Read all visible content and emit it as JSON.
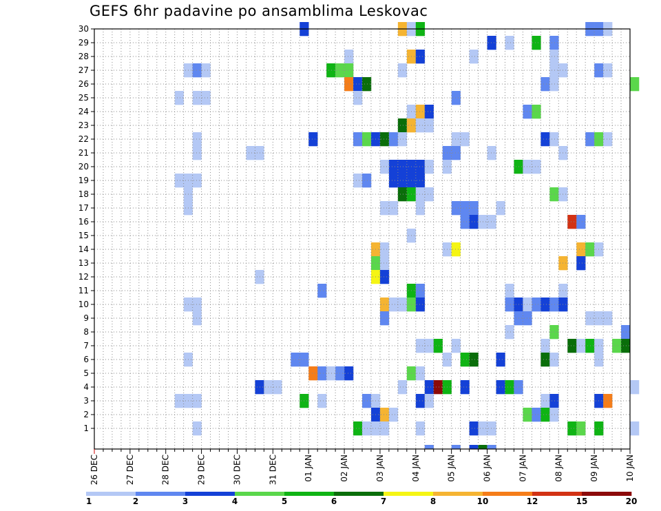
{
  "chart_data": {
    "type": "heatmap",
    "title": "GEFS 6hr padavine po ansamblima Leskovac",
    "xlabel": "",
    "ylabel": "",
    "x_ticks": [
      "26 DEC",
      "27 DEC",
      "28 DEC",
      "29 DEC",
      "30 DEC",
      "31 DEC",
      "01 JAN",
      "02 JAN",
      "03 JAN",
      "04 JAN",
      "05 JAN",
      "06 JAN",
      "07 JAN",
      "08 JAN",
      "09 JAN",
      "10 JAN"
    ],
    "xlim_days": [
      0,
      15
    ],
    "slots_per_day": 4,
    "y_ticks": [
      1,
      2,
      3,
      4,
      5,
      6,
      7,
      8,
      9,
      10,
      11,
      12,
      13,
      14,
      15,
      16,
      17,
      18,
      19,
      20,
      21,
      22,
      23,
      24,
      25,
      26,
      27,
      28,
      29,
      30
    ],
    "ylim": [
      0,
      30
    ],
    "legend": {
      "labels": [
        "1",
        "2",
        "3",
        "4",
        "5",
        "6",
        "7",
        "8",
        "10",
        "12",
        "15",
        "20"
      ],
      "colors": [
        "#b4c8f5",
        "#5f87f0",
        "#1441d7",
        "#5ad74b",
        "#0fb414",
        "#0a6e0a",
        "#f5f514",
        "#f5b432",
        "#f57d19",
        "#d23214",
        "#8c0a0a"
      ]
    },
    "class_colors": [
      "#b4c8f5",
      "#5f87f0",
      "#1441d7",
      "#5ad74b",
      "#0fb414",
      "#0a6e0a",
      "#f5f514",
      "#f5b432",
      "#f57d19",
      "#d23214",
      "#8c0a0a"
    ],
    "cells": [
      [
        30,
        23,
        3
      ],
      [
        30,
        34,
        8
      ],
      [
        30,
        35,
        1
      ],
      [
        30,
        36,
        5
      ],
      [
        30,
        55,
        2
      ],
      [
        30,
        56,
        2
      ],
      [
        30,
        57,
        1
      ],
      [
        29,
        44,
        3
      ],
      [
        29,
        46,
        1
      ],
      [
        29,
        49,
        5
      ],
      [
        29,
        51,
        2
      ],
      [
        28,
        28,
        1
      ],
      [
        28,
        35,
        8
      ],
      [
        28,
        36,
        3
      ],
      [
        28,
        42,
        1
      ],
      [
        28,
        51,
        1
      ],
      [
        27,
        10,
        1
      ],
      [
        27,
        11,
        2
      ],
      [
        27,
        12,
        1
      ],
      [
        27,
        26,
        5
      ],
      [
        27,
        27,
        4
      ],
      [
        27,
        28,
        4
      ],
      [
        27,
        34,
        1
      ],
      [
        27,
        51,
        1
      ],
      [
        27,
        52,
        1
      ],
      [
        27,
        56,
        2
      ],
      [
        27,
        57,
        1
      ],
      [
        26,
        28,
        9
      ],
      [
        26,
        29,
        3
      ],
      [
        26,
        30,
        6
      ],
      [
        26,
        50,
        2
      ],
      [
        26,
        51,
        1
      ],
      [
        26,
        60,
        4
      ],
      [
        25,
        9,
        1
      ],
      [
        25,
        11,
        1
      ],
      [
        25,
        12,
        1
      ],
      [
        25,
        29,
        1
      ],
      [
        25,
        40,
        2
      ],
      [
        24,
        35,
        1
      ],
      [
        24,
        36,
        8
      ],
      [
        24,
        37,
        3
      ],
      [
        24,
        48,
        2
      ],
      [
        24,
        49,
        4
      ],
      [
        23,
        34,
        6
      ],
      [
        23,
        35,
        8
      ],
      [
        23,
        36,
        1
      ],
      [
        23,
        37,
        1
      ],
      [
        22,
        11,
        1
      ],
      [
        22,
        24,
        3
      ],
      [
        22,
        29,
        2
      ],
      [
        22,
        30,
        4
      ],
      [
        22,
        31,
        3
      ],
      [
        22,
        32,
        6
      ],
      [
        22,
        33,
        2
      ],
      [
        22,
        34,
        1
      ],
      [
        22,
        40,
        1
      ],
      [
        22,
        41,
        1
      ],
      [
        22,
        50,
        3
      ],
      [
        22,
        51,
        1
      ],
      [
        22,
        55,
        2
      ],
      [
        22,
        56,
        4
      ],
      [
        22,
        57,
        1
      ],
      [
        21,
        11,
        1
      ],
      [
        21,
        17,
        1
      ],
      [
        21,
        18,
        1
      ],
      [
        21,
        39,
        2
      ],
      [
        21,
        40,
        2
      ],
      [
        21,
        44,
        1
      ],
      [
        21,
        52,
        1
      ],
      [
        20,
        32,
        1
      ],
      [
        20,
        33,
        3
      ],
      [
        20,
        34,
        3
      ],
      [
        20,
        35,
        3
      ],
      [
        20,
        36,
        3
      ],
      [
        20,
        37,
        1
      ],
      [
        20,
        39,
        1
      ],
      [
        20,
        47,
        5
      ],
      [
        20,
        48,
        1
      ],
      [
        20,
        49,
        1
      ],
      [
        19,
        9,
        1
      ],
      [
        19,
        10,
        1
      ],
      [
        19,
        11,
        1
      ],
      [
        19,
        29,
        1
      ],
      [
        19,
        30,
        2
      ],
      [
        19,
        33,
        3
      ],
      [
        19,
        34,
        3
      ],
      [
        19,
        35,
        3
      ],
      [
        19,
        36,
        3
      ],
      [
        18,
        10,
        1
      ],
      [
        18,
        34,
        6
      ],
      [
        18,
        35,
        5
      ],
      [
        18,
        36,
        1
      ],
      [
        18,
        37,
        1
      ],
      [
        18,
        51,
        4
      ],
      [
        18,
        52,
        1
      ],
      [
        17,
        10,
        1
      ],
      [
        17,
        32,
        1
      ],
      [
        17,
        33,
        1
      ],
      [
        17,
        36,
        1
      ],
      [
        17,
        40,
        2
      ],
      [
        17,
        41,
        2
      ],
      [
        17,
        42,
        2
      ],
      [
        17,
        45,
        1
      ],
      [
        16,
        41,
        2
      ],
      [
        16,
        42,
        3
      ],
      [
        16,
        43,
        1
      ],
      [
        16,
        44,
        1
      ],
      [
        16,
        53,
        10
      ],
      [
        16,
        54,
        2
      ],
      [
        15,
        35,
        1
      ],
      [
        14,
        31,
        8
      ],
      [
        14,
        32,
        1
      ],
      [
        14,
        39,
        1
      ],
      [
        14,
        40,
        7
      ],
      [
        14,
        54,
        8
      ],
      [
        14,
        55,
        4
      ],
      [
        14,
        56,
        1
      ],
      [
        13,
        31,
        4
      ],
      [
        13,
        32,
        1
      ],
      [
        13,
        52,
        8
      ],
      [
        13,
        54,
        3
      ],
      [
        12,
        31,
        7
      ],
      [
        12,
        32,
        3
      ],
      [
        12,
        18,
        1
      ],
      [
        11,
        25,
        2
      ],
      [
        11,
        35,
        5
      ],
      [
        11,
        36,
        2
      ],
      [
        11,
        46,
        1
      ],
      [
        11,
        52,
        1
      ],
      [
        10,
        10,
        1
      ],
      [
        10,
        11,
        1
      ],
      [
        10,
        32,
        8
      ],
      [
        10,
        33,
        1
      ],
      [
        10,
        34,
        1
      ],
      [
        10,
        35,
        4
      ],
      [
        10,
        36,
        3
      ],
      [
        10,
        46,
        2
      ],
      [
        10,
        47,
        3
      ],
      [
        10,
        48,
        1
      ],
      [
        10,
        49,
        2
      ],
      [
        10,
        50,
        3
      ],
      [
        10,
        51,
        2
      ],
      [
        10,
        52,
        3
      ],
      [
        9,
        11,
        1
      ],
      [
        9,
        32,
        2
      ],
      [
        9,
        47,
        2
      ],
      [
        9,
        48,
        2
      ],
      [
        9,
        55,
        1
      ],
      [
        9,
        56,
        1
      ],
      [
        9,
        57,
        1
      ],
      [
        8,
        46,
        1
      ],
      [
        8,
        51,
        4
      ],
      [
        8,
        59,
        2
      ],
      [
        7,
        36,
        1
      ],
      [
        7,
        37,
        1
      ],
      [
        7,
        38,
        5
      ],
      [
        7,
        40,
        1
      ],
      [
        7,
        50,
        1
      ],
      [
        7,
        53,
        6
      ],
      [
        7,
        54,
        1
      ],
      [
        7,
        55,
        5
      ],
      [
        7,
        56,
        1
      ],
      [
        7,
        58,
        4
      ],
      [
        7,
        59,
        6
      ],
      [
        6,
        10,
        1
      ],
      [
        6,
        22,
        2
      ],
      [
        6,
        23,
        2
      ],
      [
        6,
        39,
        1
      ],
      [
        6,
        41,
        5
      ],
      [
        6,
        42,
        6
      ],
      [
        6,
        45,
        3
      ],
      [
        6,
        50,
        6
      ],
      [
        6,
        51,
        1
      ],
      [
        6,
        56,
        1
      ],
      [
        5,
        24,
        9
      ],
      [
        5,
        25,
        2
      ],
      [
        5,
        26,
        1
      ],
      [
        5,
        27,
        2
      ],
      [
        5,
        28,
        3
      ],
      [
        5,
        35,
        4
      ],
      [
        5,
        36,
        1
      ],
      [
        4,
        18,
        3
      ],
      [
        4,
        19,
        1
      ],
      [
        4,
        20,
        1
      ],
      [
        4,
        34,
        1
      ],
      [
        4,
        37,
        3
      ],
      [
        4,
        38,
        11
      ],
      [
        4,
        39,
        5
      ],
      [
        4,
        41,
        3
      ],
      [
        4,
        45,
        3
      ],
      [
        4,
        46,
        5
      ],
      [
        4,
        47,
        2
      ],
      [
        4,
        60,
        1
      ],
      [
        3,
        9,
        1
      ],
      [
        3,
        10,
        1
      ],
      [
        3,
        11,
        1
      ],
      [
        3,
        23,
        5
      ],
      [
        3,
        25,
        1
      ],
      [
        3,
        30,
        2
      ],
      [
        3,
        31,
        1
      ],
      [
        3,
        36,
        3
      ],
      [
        3,
        37,
        1
      ],
      [
        3,
        50,
        1
      ],
      [
        3,
        51,
        3
      ],
      [
        3,
        56,
        3
      ],
      [
        3,
        57,
        9
      ],
      [
        2,
        31,
        3
      ],
      [
        2,
        32,
        8
      ],
      [
        2,
        33,
        1
      ],
      [
        2,
        48,
        4
      ],
      [
        2,
        49,
        2
      ],
      [
        2,
        50,
        5
      ],
      [
        2,
        51,
        1
      ],
      [
        1,
        11,
        1
      ],
      [
        1,
        29,
        5
      ],
      [
        1,
        30,
        1
      ],
      [
        1,
        31,
        1
      ],
      [
        1,
        32,
        1
      ],
      [
        1,
        36,
        1
      ],
      [
        1,
        42,
        3
      ],
      [
        1,
        43,
        1
      ],
      [
        1,
        44,
        1
      ],
      [
        1,
        53,
        5
      ],
      [
        1,
        54,
        4
      ],
      [
        1,
        56,
        5
      ],
      [
        1,
        60,
        1
      ],
      [
        0,
        37,
        2
      ],
      [
        0,
        40,
        2
      ],
      [
        0,
        42,
        3
      ],
      [
        0,
        43,
        6
      ],
      [
        0,
        44,
        2
      ]
    ]
  }
}
